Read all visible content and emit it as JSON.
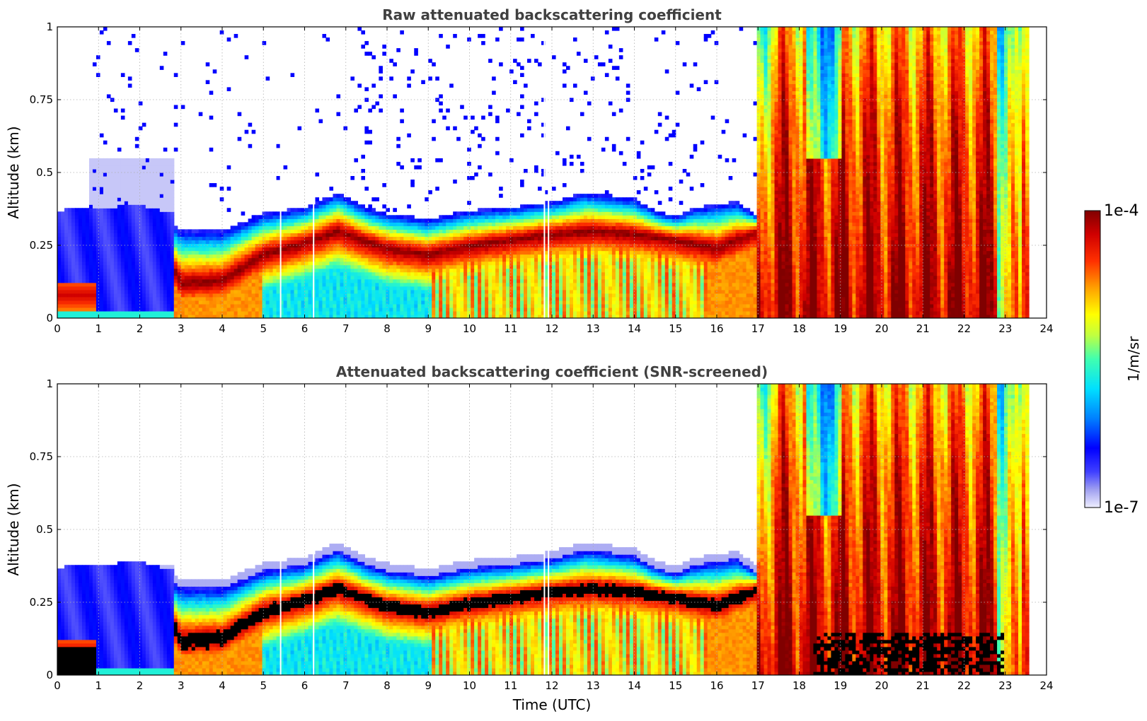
{
  "chart_data": [
    {
      "type": "heatmap",
      "title": "Raw attenuated backscattering coefficient",
      "xlabel": "",
      "ylabel": "Altitude (km)",
      "xlim": [
        0,
        24
      ],
      "ylim": [
        0,
        1
      ],
      "xticks": [
        "0",
        "1",
        "2",
        "3",
        "4",
        "5",
        "6",
        "7",
        "8",
        "9",
        "10",
        "11",
        "12",
        "13",
        "14",
        "15",
        "16",
        "17",
        "18",
        "19",
        "20",
        "21",
        "22",
        "23",
        "24"
      ],
      "yticks": [
        "0",
        "0.25",
        "0.5",
        "0.75",
        "1"
      ],
      "grid": true,
      "screened": false,
      "features": {
        "layer_top_km": [
          [
            0,
            0.33
          ],
          [
            1,
            0.34
          ],
          [
            2,
            0.35
          ],
          [
            2.8,
            0.32
          ],
          [
            3,
            0.3
          ],
          [
            4,
            0.3
          ],
          [
            5,
            0.36
          ],
          [
            6,
            0.38
          ],
          [
            6.8,
            0.43
          ],
          [
            7.5,
            0.38
          ],
          [
            8,
            0.36
          ],
          [
            9,
            0.34
          ],
          [
            10,
            0.37
          ],
          [
            11,
            0.38
          ],
          [
            12,
            0.4
          ],
          [
            12.8,
            0.43
          ],
          [
            13.5,
            0.42
          ],
          [
            14,
            0.41
          ],
          [
            14.5,
            0.37
          ],
          [
            15,
            0.35
          ],
          [
            15.5,
            0.38
          ],
          [
            16,
            0.39
          ],
          [
            16.5,
            0.4
          ],
          [
            17,
            0.35
          ]
        ],
        "layer_core_km": [
          [
            2.8,
            0.18
          ],
          [
            3,
            0.12
          ],
          [
            4,
            0.13
          ],
          [
            5,
            0.22
          ],
          [
            6,
            0.26
          ],
          [
            6.8,
            0.3
          ],
          [
            8,
            0.24
          ],
          [
            9,
            0.22
          ],
          [
            10,
            0.25
          ],
          [
            11,
            0.27
          ],
          [
            12,
            0.29
          ],
          [
            13,
            0.3
          ],
          [
            14,
            0.29
          ],
          [
            15,
            0.27
          ],
          [
            16,
            0.24
          ],
          [
            17,
            0.3
          ]
        ],
        "fog_from_utc": 17,
        "fog_to_utc": 23.55
      }
    },
    {
      "type": "heatmap",
      "title": "Attenuated backscattering coefficient (SNR-screened)",
      "xlabel": "Time (UTC)",
      "ylabel": "Altitude (km)",
      "xlim": [
        0,
        24
      ],
      "ylim": [
        0,
        1
      ],
      "xticks": [
        "0",
        "1",
        "2",
        "3",
        "4",
        "5",
        "6",
        "7",
        "8",
        "9",
        "10",
        "11",
        "12",
        "13",
        "14",
        "15",
        "16",
        "17",
        "18",
        "19",
        "20",
        "21",
        "22",
        "23",
        "24"
      ],
      "yticks": [
        "0",
        "0.25",
        "0.5",
        "0.75",
        "1"
      ],
      "grid": true,
      "screened": true,
      "features": {
        "saturated_color": "#000000"
      }
    }
  ],
  "colorbar": {
    "label": "1/m/sr",
    "max_label": "1e-4",
    "min_label": "1e-7",
    "colors": [
      "#e6e6fa",
      "#c8c8f5",
      "#a0a0f0",
      "#6464ff",
      "#0000ff",
      "#0064ff",
      "#00c8ff",
      "#00ffe0",
      "#80ff80",
      "#e0ff20",
      "#ffff00",
      "#ffb000",
      "#ff6000",
      "#ff0000",
      "#c00000",
      "#800000"
    ]
  }
}
